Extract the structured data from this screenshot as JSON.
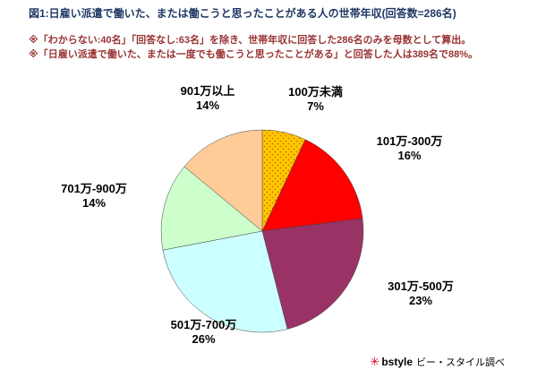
{
  "header": {
    "title": "図1:日雇い派遣で働いた、または働こうと思ったことがある人の世帯年収(回答数=286名)",
    "note1": "※「わからない:40名」「回答なし:63名」を除き、世帯年収に回答した286名のみを母数として算出。",
    "note2": "※「日雇い派遣で働いた、または一度でも働こうと思ったことがある」と回答した人は389名で88%。"
  },
  "colors": {
    "title_text": "#1f3864",
    "note_text": "#993333",
    "logo": "#dd0022"
  },
  "chart_data": {
    "type": "pie",
    "title": "日雇い派遣で働いた、または働こうと思ったことがある人の世帯年収",
    "unit": "%",
    "start_angle_deg": 0,
    "direction": "clockwise",
    "legend_position": "labels-around-pie",
    "slices": [
      {
        "label": "100万未満",
        "percent": 7,
        "value_label": "7%",
        "color": "#ffcc00",
        "pattern": "dot-grid",
        "pattern_dot_color": "#e07000"
      },
      {
        "label": "101万-300万",
        "percent": 16,
        "value_label": "16%",
        "color": "#ff0000"
      },
      {
        "label": "301万-500万",
        "percent": 23,
        "value_label": "23%",
        "color": "#993366"
      },
      {
        "label": "501万-700万",
        "percent": 26,
        "value_label": "26%",
        "color": "#ccffff"
      },
      {
        "label": "701万-900万",
        "percent": 14,
        "value_label": "14%",
        "color": "#ccffcc"
      },
      {
        "label": "901万以上",
        "percent": 14,
        "value_label": "14%",
        "color": "#ffcc99"
      }
    ]
  },
  "footer": {
    "logo_icon": "✳",
    "brand": "bstyle",
    "credit": "ビー・スタイル調べ"
  }
}
